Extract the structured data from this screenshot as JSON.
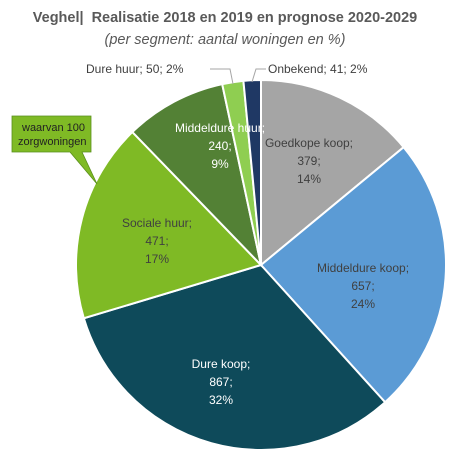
{
  "chart_data": {
    "type": "pie",
    "title_place": "Veghel",
    "title_separator": "|",
    "title": "Realisatie 2018 en 2019 en prognose 2020-2029",
    "subtitle": "(per segment: aantal woningen en %)",
    "slices": [
      {
        "label": "Goedkope koop",
        "value": 379,
        "percent": "14%",
        "color": "#a5a5a5",
        "text_color": "dark",
        "outside": false
      },
      {
        "label": "Middeldure koop",
        "value": 657,
        "percent": "24%",
        "color": "#5b9bd5",
        "text_color": "dark",
        "outside": false
      },
      {
        "label": "Dure koop",
        "value": 867,
        "percent": "32%",
        "color": "#0e4a5a",
        "text_color": "light",
        "outside": false
      },
      {
        "label": "Sociale huur",
        "value": 471,
        "percent": "17%",
        "color": "#7fba25",
        "text_color": "dark",
        "outside": false
      },
      {
        "label": "Middeldure huur",
        "value": 240,
        "percent": "9%",
        "color": "#538135",
        "text_color": "light",
        "outside": false
      },
      {
        "label": "Dure huur",
        "value": 50,
        "percent": "2%",
        "color": "#8fce51",
        "text_color": "dark",
        "outside": true
      },
      {
        "label": "Onbekend",
        "value": 41,
        "percent": "2%",
        "color": "#1f3864",
        "text_color": "dark",
        "outside": true
      }
    ],
    "callout": {
      "lines": [
        "waarvan 100",
        "zorgwoningen"
      ],
      "color": "#7fba25"
    },
    "legend": "none"
  }
}
